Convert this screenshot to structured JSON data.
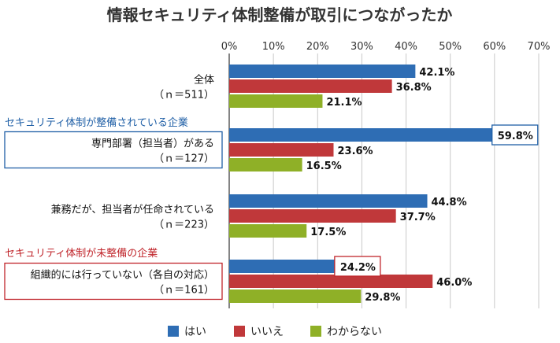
{
  "chart_data": {
    "type": "bar",
    "orientation": "horizontal",
    "title": "情報セキュリティ体制整備が取引につながったか",
    "x_ticks": [
      "0%",
      "10%",
      "20%",
      "30%",
      "40%",
      "50%",
      "60%",
      "70%"
    ],
    "xlim": [
      0,
      70
    ],
    "grid": true,
    "legend_position": "bottom",
    "sections": [
      {
        "label": "",
        "color": "",
        "groups": [
          0
        ]
      },
      {
        "label": "セキュリティ体制が整備されている企業",
        "color": "#1f5fa6",
        "groups": [
          1,
          2
        ]
      },
      {
        "label": "セキュリティ体制が未整備の企業",
        "color": "#c0252b",
        "groups": [
          3
        ]
      }
    ],
    "categories": [
      {
        "line1": "全体",
        "line2": "（ｎ＝511）",
        "boxed": false
      },
      {
        "line1": "専門部署（担当者）がある",
        "line2": "（ｎ＝127）",
        "boxed": true
      },
      {
        "line1": "兼務だが、担当者が任命されている",
        "line2": "（ｎ＝223）",
        "boxed": false
      },
      {
        "line1": "組織的には行っていない（各自の対応）",
        "line2": "（ｎ＝161）",
        "boxed": true
      }
    ],
    "series": [
      {
        "name": "はい",
        "color": "#2e6db4",
        "values": [
          42.1,
          59.8,
          44.8,
          24.2
        ],
        "labels": [
          "42.1%",
          "59.8%",
          "44.8%",
          "24.2%"
        ]
      },
      {
        "name": "いいえ",
        "color": "#c0383a",
        "values": [
          36.8,
          23.6,
          37.7,
          46.0
        ],
        "labels": [
          "36.8%",
          "23.6%",
          "37.7%",
          "46.0%"
        ]
      },
      {
        "name": "わからない",
        "color": "#8fb027",
        "values": [
          21.1,
          16.5,
          17.5,
          29.8
        ],
        "labels": [
          "21.1%",
          "16.5%",
          "17.5%",
          "29.8%"
        ]
      }
    ],
    "highlighted_labels": [
      {
        "group": 1,
        "series": 0,
        "box_color": "#1f5fa6"
      },
      {
        "group": 3,
        "series": 0,
        "box_color": "#c0252b"
      }
    ]
  }
}
